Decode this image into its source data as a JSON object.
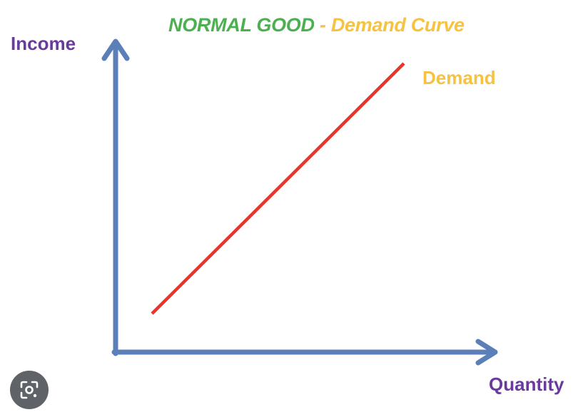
{
  "title": {
    "part1": "NORMAL GOOD",
    "separator": " - ",
    "part2": "Demand Curve"
  },
  "axes": {
    "y_label": "Income",
    "x_label": "Quantity"
  },
  "curve": {
    "label": "Demand"
  },
  "colors": {
    "axis": "#5b7fb8",
    "curve": "#e8352b",
    "title_green": "#4caf50",
    "title_yellow": "#f5c242",
    "label_purple": "#6a3b9c"
  },
  "overlay": {
    "icon": "lens-search-icon"
  }
}
